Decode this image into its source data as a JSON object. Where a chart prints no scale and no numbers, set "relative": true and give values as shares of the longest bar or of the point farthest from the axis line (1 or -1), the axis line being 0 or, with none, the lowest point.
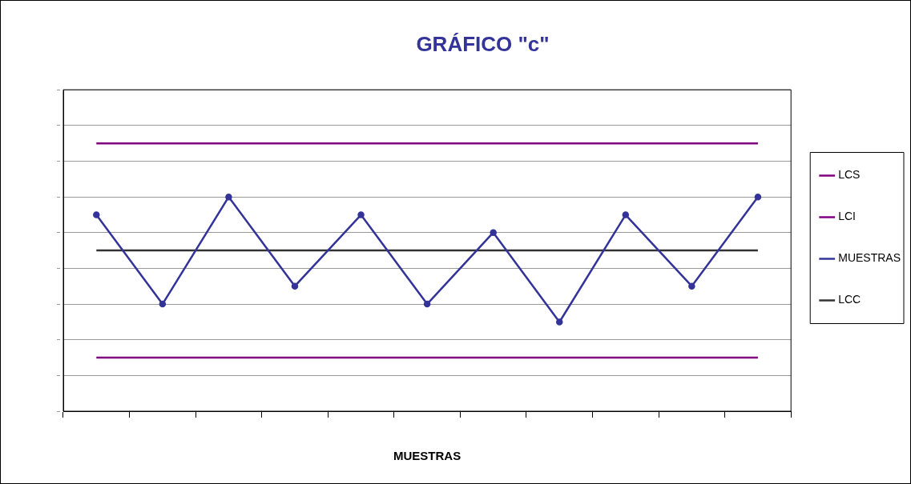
{
  "chart_data": {
    "type": "line",
    "title": "GRÁFICO \"c\"",
    "xlabel": "MUESTRAS",
    "relative": true,
    "grid": "y",
    "legend": "right",
    "line_style": "solid",
    "categories": [
      null,
      null,
      null,
      null,
      null,
      null,
      null,
      null,
      null,
      null,
      null
    ],
    "series": [
      {
        "name": "LCS",
        "color": "#800080",
        "marker": "none",
        "values": [
          1,
          1,
          1,
          1,
          1,
          1,
          1,
          1,
          1,
          1,
          1
        ]
      },
      {
        "name": "LCI",
        "color": "#800080",
        "marker": "none",
        "values": [
          0.2,
          0.2,
          0.2,
          0.2,
          0.2,
          0.2,
          0.2,
          0.2,
          0.2,
          0.2,
          0.2
        ]
      },
      {
        "name": "MUESTRAS",
        "color": "#333399",
        "marker": "circle",
        "values": [
          0.733,
          0.4,
          0.8,
          0.467,
          0.733,
          0.4,
          0.667,
          0.333,
          0.733,
          0.467,
          0.8
        ]
      },
      {
        "name": "LCC",
        "color": "#333333",
        "marker": "none",
        "values": [
          0.6,
          0.6,
          0.6,
          0.6,
          0.6,
          0.6,
          0.6,
          0.6,
          0.6,
          0.6,
          0.6
        ]
      }
    ]
  }
}
